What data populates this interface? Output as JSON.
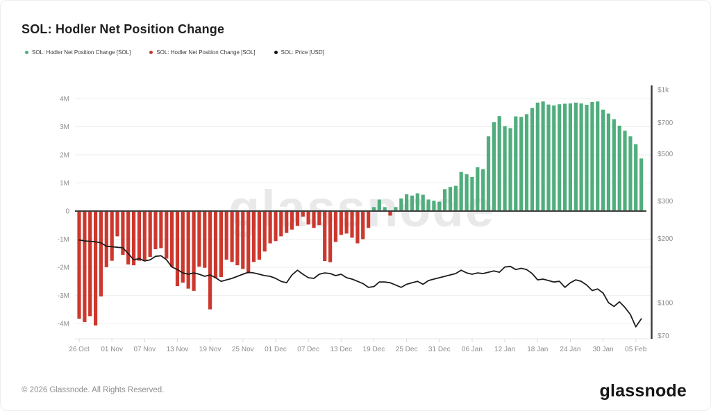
{
  "header": {
    "title": "SOL: Hodler Net Position Change"
  },
  "legend": {
    "items": [
      {
        "label": "SOL: Hodler Net Position Change [SOL]",
        "color": "#50ad7d"
      },
      {
        "label": "SOL: Hodler Net Position Change [SOL]",
        "color": "#cc382e"
      },
      {
        "label": "SOL: Price [USD]",
        "color": "#111111"
      }
    ]
  },
  "watermark": "glassnode",
  "footer": {
    "copyright": "© 2026 Glassnode. All Rights Reserved.",
    "logo": "glassnode"
  },
  "colors": {
    "positive": "#50ad7d",
    "negative": "#cc382e",
    "price_line": "#1c1c1c",
    "grid": "#ededed",
    "axis_dark": "#3d3d3d",
    "axis_label": "#8c8c8c",
    "watermark": "#e9e9e9"
  },
  "chart_data": {
    "type": "bar",
    "title": "SOL: Hodler Net Position Change",
    "grid": true,
    "legend_position": "top",
    "categories": [
      "26 Oct",
      "27 Oct",
      "28 Oct",
      "29 Oct",
      "30 Oct",
      "31 Oct",
      "01 Nov",
      "02 Nov",
      "03 Nov",
      "04 Nov",
      "05 Nov",
      "06 Nov",
      "07 Nov",
      "08 Nov",
      "09 Nov",
      "10 Nov",
      "11 Nov",
      "12 Nov",
      "13 Nov",
      "14 Nov",
      "15 Nov",
      "16 Nov",
      "17 Nov",
      "18 Nov",
      "19 Nov",
      "20 Nov",
      "21 Nov",
      "22 Nov",
      "23 Nov",
      "24 Nov",
      "25 Nov",
      "26 Nov",
      "27 Nov",
      "28 Nov",
      "29 Nov",
      "30 Nov",
      "01 Dec",
      "02 Dec",
      "03 Dec",
      "04 Dec",
      "05 Dec",
      "06 Dec",
      "07 Dec",
      "08 Dec",
      "09 Dec",
      "10 Dec",
      "11 Dec",
      "12 Dec",
      "13 Dec",
      "14 Dec",
      "15 Dec",
      "16 Dec",
      "17 Dec",
      "18 Dec",
      "19 Dec",
      "20 Dec",
      "21 Dec",
      "22 Dec",
      "23 Dec",
      "24 Dec",
      "25 Dec",
      "26 Dec",
      "27 Dec",
      "28 Dec",
      "29 Dec",
      "30 Dec",
      "31 Dec",
      "01 Jan",
      "02 Jan",
      "03 Jan",
      "04 Jan",
      "05 Jan",
      "06 Jan",
      "07 Jan",
      "08 Jan",
      "09 Jan",
      "10 Jan",
      "11 Jan",
      "12 Jan",
      "13 Jan",
      "14 Jan",
      "15 Jan",
      "16 Jan",
      "17 Jan",
      "18 Jan",
      "19 Jan",
      "20 Jan",
      "21 Jan",
      "22 Jan",
      "23 Jan",
      "24 Jan",
      "25 Jan",
      "26 Jan",
      "27 Jan",
      "28 Jan",
      "29 Jan",
      "30 Jan",
      "31 Jan",
      "01 Feb",
      "02 Feb",
      "03 Feb",
      "04 Feb",
      "05 Feb",
      "06 Feb"
    ],
    "series": [
      {
        "name": "SOL: Hodler Net Position Change [SOL]",
        "type": "bar",
        "axis": "left",
        "unit": "M SOL",
        "positive_color": "#50ad7d",
        "negative_color": "#cc382e",
        "values": [
          -3.83,
          -3.95,
          -3.74,
          -4.07,
          -3.04,
          -2.0,
          -1.77,
          -0.9,
          -1.56,
          -1.9,
          -1.93,
          -1.77,
          -1.75,
          -1.63,
          -1.36,
          -1.32,
          -1.69,
          -1.98,
          -2.67,
          -2.55,
          -2.76,
          -2.84,
          -1.98,
          -2.02,
          -3.5,
          -2.39,
          -2.35,
          -1.73,
          -1.81,
          -1.93,
          -2.06,
          -2.22,
          -1.81,
          -1.73,
          -1.44,
          -1.15,
          -1.07,
          -0.9,
          -0.78,
          -0.66,
          -0.53,
          -0.2,
          -0.48,
          -0.6,
          -0.5,
          -1.78,
          -1.82,
          -1.1,
          -0.85,
          -0.8,
          -0.95,
          -1.15,
          -1.0,
          -0.6,
          0.14,
          0.41,
          0.14,
          -0.16,
          0.14,
          0.45,
          0.6,
          0.55,
          0.63,
          0.58,
          0.41,
          0.37,
          0.33,
          0.78,
          0.86,
          0.9,
          1.39,
          1.31,
          1.21,
          1.56,
          1.49,
          2.66,
          3.16,
          3.38,
          3.02,
          2.95,
          3.37,
          3.35,
          3.45,
          3.67,
          3.86,
          3.9,
          3.79,
          3.76,
          3.8,
          3.82,
          3.83,
          3.86,
          3.83,
          3.78,
          3.88,
          3.9,
          3.61,
          3.47,
          3.27,
          3.04,
          2.86,
          2.66,
          2.38,
          1.87
        ]
      },
      {
        "name": "SOL: Price [USD]",
        "type": "line",
        "axis": "right",
        "unit": "USD",
        "color": "#1c1c1c",
        "values": [
          197,
          195,
          194,
          193,
          191,
          184,
          183,
          182,
          181,
          170,
          159,
          161,
          157,
          159,
          165,
          166,
          159,
          147,
          143,
          138,
          136,
          138,
          136,
          133,
          135,
          131,
          126,
          128,
          130,
          133,
          136,
          139,
          138,
          136,
          134,
          133,
          130,
          126,
          124,
          135,
          142,
          136,
          131,
          130,
          136,
          138,
          137,
          134,
          136,
          131,
          129,
          126,
          123,
          118,
          119,
          125,
          125,
          124,
          121,
          118,
          122,
          124,
          126,
          122,
          127,
          129,
          131,
          133,
          135,
          137,
          142,
          138,
          136,
          138,
          137,
          139,
          141,
          139,
          147,
          148,
          143,
          145,
          143,
          137,
          128,
          129,
          127,
          125,
          126,
          118,
          124,
          128,
          126,
          121,
          114,
          116,
          111,
          100,
          96,
          101,
          95,
          88,
          77,
          84
        ]
      }
    ],
    "left_axis": {
      "ticks": [
        "4M",
        "3M",
        "2M",
        "1M",
        "0",
        "-1M",
        "-2M",
        "-3M",
        "-4M"
      ],
      "tick_values": [
        4,
        3,
        2,
        1,
        0,
        -1,
        -2,
        -3,
        -4
      ],
      "range": [
        -4.6,
        4.6
      ]
    },
    "right_axis": {
      "scale": "log",
      "ticks": [
        "$1k",
        "$700",
        "$500",
        "$300",
        "$200",
        "$100",
        "$70"
      ],
      "tick_values": [
        1000,
        700,
        500,
        300,
        200,
        100,
        70
      ],
      "range": [
        70,
        1000
      ]
    },
    "x_ticks": [
      "26 Oct",
      "01 Nov",
      "07 Nov",
      "13 Nov",
      "19 Nov",
      "25 Nov",
      "01 Dec",
      "07 Dec",
      "13 Dec",
      "19 Dec",
      "25 Dec",
      "31 Dec",
      "06 Jan",
      "12 Jan",
      "18 Jan",
      "24 Jan",
      "30 Jan",
      "05 Feb"
    ],
    "x_tick_step": 6
  }
}
